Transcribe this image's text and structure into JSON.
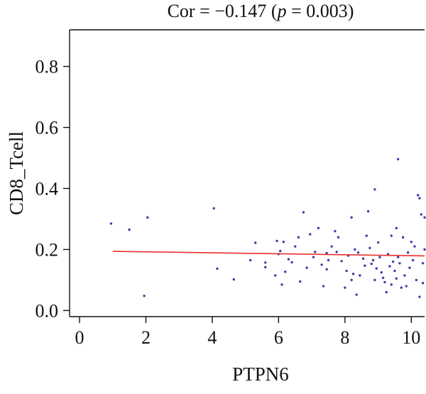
{
  "chart_data": {
    "type": "scatter",
    "title_parts": {
      "prefix": "Cor = −0.147 (",
      "p_symbol": "p",
      "suffix": " = 0.003)"
    },
    "xlabel": "PTPN6",
    "ylabel": "CD8_Tcell",
    "xlim": [
      -0.3,
      10.4
    ],
    "ylim": [
      -0.02,
      0.92
    ],
    "xticks": [
      0,
      2,
      4,
      6,
      8,
      10
    ],
    "yticks": [
      0.0,
      0.2,
      0.4,
      0.6,
      0.8
    ],
    "ytick_labels": [
      "0.0",
      "0.2",
      "0.4",
      "0.6",
      "0.8"
    ],
    "grid": false,
    "point_color": "#3b3fa8",
    "fit_line_color": "#e8302a",
    "fit_line": {
      "x": [
        1.0,
        10.4
      ],
      "y": [
        0.194,
        0.179
      ]
    },
    "points": [
      {
        "x": 0.95,
        "y": 0.285
      },
      {
        "x": 1.5,
        "y": 0.265
      },
      {
        "x": 1.95,
        "y": 0.048
      },
      {
        "x": 2.05,
        "y": 0.305
      },
      {
        "x": 4.05,
        "y": 0.335
      },
      {
        "x": 4.15,
        "y": 0.137
      },
      {
        "x": 4.65,
        "y": 0.102
      },
      {
        "x": 5.15,
        "y": 0.165
      },
      {
        "x": 5.3,
        "y": 0.222
      },
      {
        "x": 5.6,
        "y": 0.157
      },
      {
        "x": 5.6,
        "y": 0.142
      },
      {
        "x": 5.9,
        "y": 0.115
      },
      {
        "x": 5.95,
        "y": 0.228
      },
      {
        "x": 6.0,
        "y": 0.185
      },
      {
        "x": 6.05,
        "y": 0.195
      },
      {
        "x": 6.1,
        "y": 0.085
      },
      {
        "x": 6.15,
        "y": 0.225
      },
      {
        "x": 6.2,
        "y": 0.127
      },
      {
        "x": 6.3,
        "y": 0.168
      },
      {
        "x": 6.4,
        "y": 0.158
      },
      {
        "x": 6.5,
        "y": 0.21
      },
      {
        "x": 6.6,
        "y": 0.24
      },
      {
        "x": 6.65,
        "y": 0.095
      },
      {
        "x": 6.75,
        "y": 0.322
      },
      {
        "x": 6.85,
        "y": 0.14
      },
      {
        "x": 6.95,
        "y": 0.25
      },
      {
        "x": 7.05,
        "y": 0.175
      },
      {
        "x": 7.1,
        "y": 0.192
      },
      {
        "x": 7.2,
        "y": 0.27
      },
      {
        "x": 7.3,
        "y": 0.15
      },
      {
        "x": 7.35,
        "y": 0.08
      },
      {
        "x": 7.45,
        "y": 0.135
      },
      {
        "x": 7.45,
        "y": 0.188
      },
      {
        "x": 7.5,
        "y": 0.165
      },
      {
        "x": 7.6,
        "y": 0.21
      },
      {
        "x": 7.7,
        "y": 0.26
      },
      {
        "x": 7.75,
        "y": 0.192
      },
      {
        "x": 7.8,
        "y": 0.24
      },
      {
        "x": 7.9,
        "y": 0.162
      },
      {
        "x": 8.0,
        "y": 0.075
      },
      {
        "x": 8.05,
        "y": 0.13
      },
      {
        "x": 8.1,
        "y": 0.18
      },
      {
        "x": 8.2,
        "y": 0.305
      },
      {
        "x": 8.2,
        "y": 0.1
      },
      {
        "x": 8.25,
        "y": 0.12
      },
      {
        "x": 8.3,
        "y": 0.2
      },
      {
        "x": 8.35,
        "y": 0.052
      },
      {
        "x": 8.4,
        "y": 0.19
      },
      {
        "x": 8.45,
        "y": 0.115
      },
      {
        "x": 8.55,
        "y": 0.17
      },
      {
        "x": 8.6,
        "y": 0.147
      },
      {
        "x": 8.65,
        "y": 0.245
      },
      {
        "x": 8.7,
        "y": 0.325
      },
      {
        "x": 8.75,
        "y": 0.205
      },
      {
        "x": 8.8,
        "y": 0.153
      },
      {
        "x": 8.85,
        "y": 0.165
      },
      {
        "x": 8.9,
        "y": 0.397
      },
      {
        "x": 8.9,
        "y": 0.1
      },
      {
        "x": 8.95,
        "y": 0.138
      },
      {
        "x": 9.0,
        "y": 0.223
      },
      {
        "x": 9.05,
        "y": 0.175
      },
      {
        "x": 9.1,
        "y": 0.125
      },
      {
        "x": 9.15,
        "y": 0.107
      },
      {
        "x": 9.2,
        "y": 0.093
      },
      {
        "x": 9.25,
        "y": 0.06
      },
      {
        "x": 9.3,
        "y": 0.185
      },
      {
        "x": 9.35,
        "y": 0.145
      },
      {
        "x": 9.4,
        "y": 0.245
      },
      {
        "x": 9.4,
        "y": 0.085
      },
      {
        "x": 9.45,
        "y": 0.16
      },
      {
        "x": 9.5,
        "y": 0.13
      },
      {
        "x": 9.55,
        "y": 0.105
      },
      {
        "x": 9.55,
        "y": 0.27
      },
      {
        "x": 9.6,
        "y": 0.496
      },
      {
        "x": 9.6,
        "y": 0.175
      },
      {
        "x": 9.65,
        "y": 0.155
      },
      {
        "x": 9.7,
        "y": 0.075
      },
      {
        "x": 9.75,
        "y": 0.24
      },
      {
        "x": 9.8,
        "y": 0.115
      },
      {
        "x": 9.85,
        "y": 0.08
      },
      {
        "x": 9.9,
        "y": 0.19
      },
      {
        "x": 9.95,
        "y": 0.14
      },
      {
        "x": 10.0,
        "y": 0.225
      },
      {
        "x": 10.05,
        "y": 0.165
      },
      {
        "x": 10.1,
        "y": 0.21
      },
      {
        "x": 10.15,
        "y": 0.1
      },
      {
        "x": 10.2,
        "y": 0.378
      },
      {
        "x": 10.25,
        "y": 0.368
      },
      {
        "x": 10.25,
        "y": 0.045
      },
      {
        "x": 10.3,
        "y": 0.315
      },
      {
        "x": 10.35,
        "y": 0.155
      },
      {
        "x": 10.35,
        "y": 0.09
      },
      {
        "x": 10.4,
        "y": 0.305
      },
      {
        "x": 10.4,
        "y": 0.2
      }
    ]
  }
}
